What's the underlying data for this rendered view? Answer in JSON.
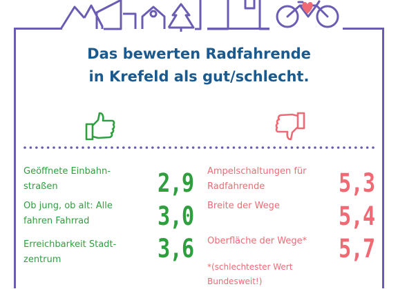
{
  "colors": {
    "frame": "#6a5cb2",
    "title": "#1a5a8f",
    "good": "#2e9e3e",
    "bad": "#ef6a75",
    "dots": "#6a5cb2"
  },
  "icons": {
    "skyline": "city-skyline-icon",
    "bicycle": "bicycle-heart-icon",
    "thumb_up": "thumbs-up-icon",
    "thumb_down": "thumbs-down-icon"
  },
  "title": {
    "line1": "Das bewerten Radfahrende",
    "line2": "in Krefeld als gut/schlecht."
  },
  "good": [
    {
      "line1": "Geöffnete Einbahn-",
      "line2": "straßen",
      "score": "2,9"
    },
    {
      "line1": "Ob jung, ob alt: Alle",
      "line2": "fahren Fahrrad",
      "score": "3,0"
    },
    {
      "line1": "Erreichbarkeit Stadt-",
      "line2": "zentrum",
      "score": "3,6"
    }
  ],
  "bad": [
    {
      "line1": "Ampelschaltungen für",
      "line2": "Radfahrende",
      "score": "5,3"
    },
    {
      "line1": "Breite der Wege",
      "line2": "",
      "score": "5,4"
    },
    {
      "line1": "Oberfläche der Wege*",
      "line2": "",
      "score": "5,7"
    }
  ],
  "footnote": {
    "line1": "*(schlechtester Wert",
    "line2": "Bundesweit!)"
  }
}
